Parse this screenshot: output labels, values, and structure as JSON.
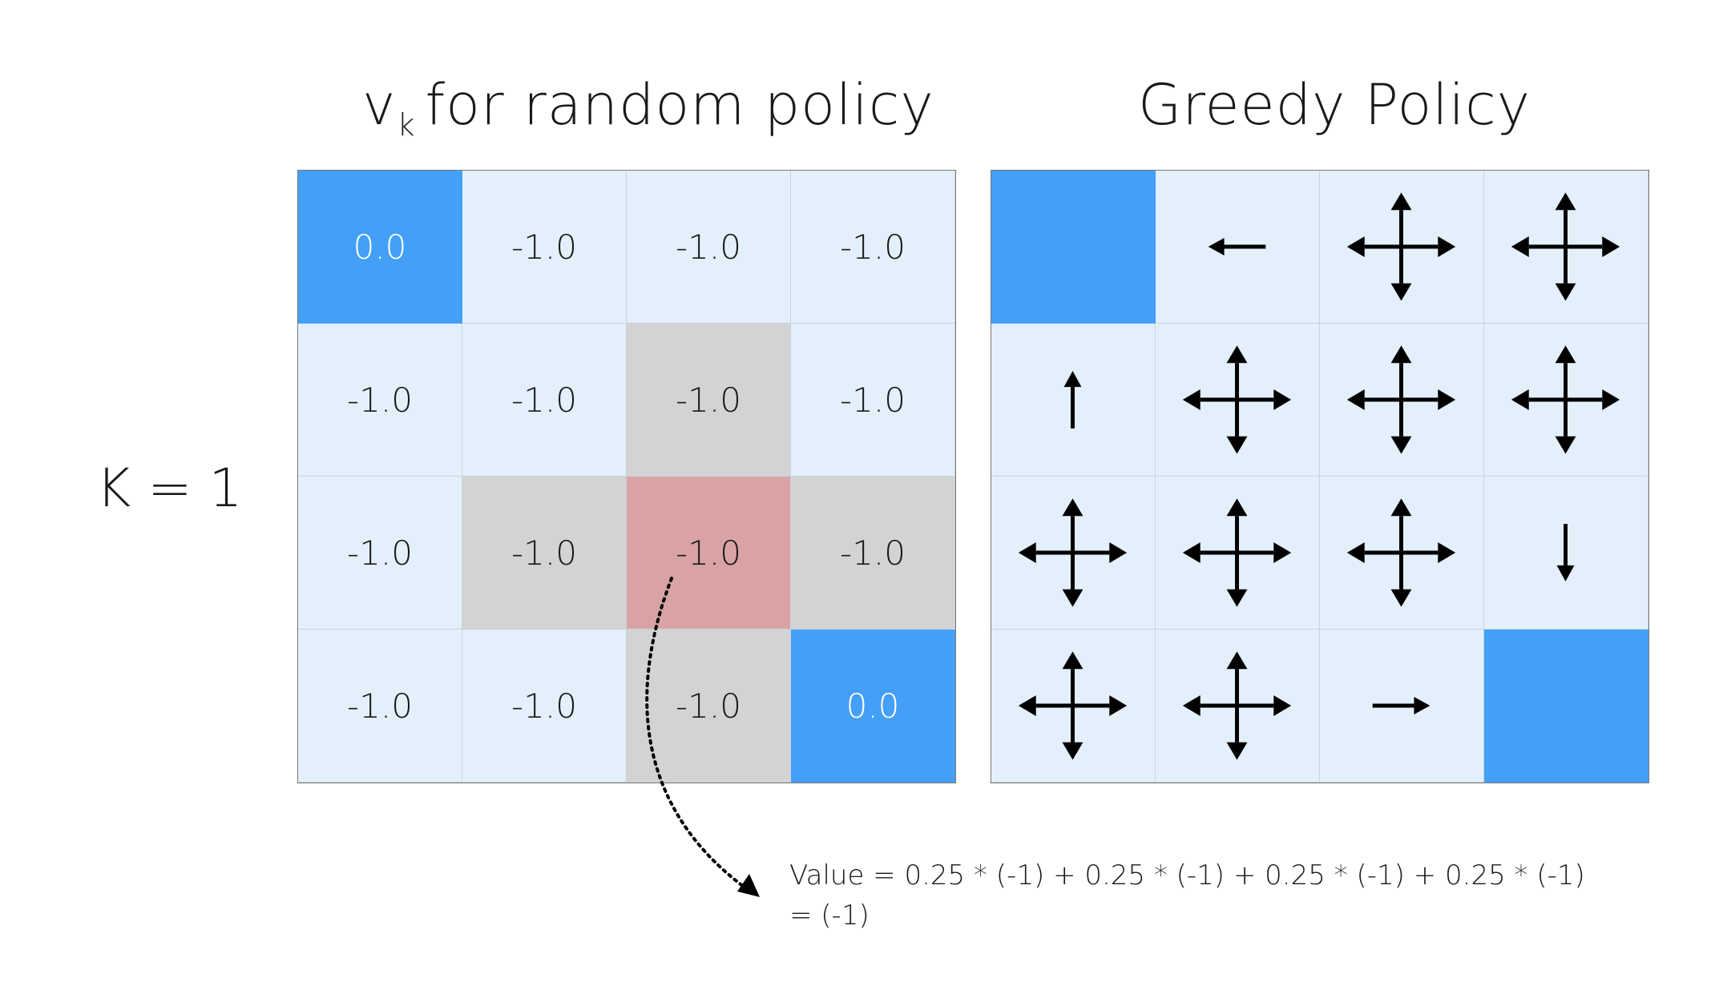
{
  "titles": {
    "left_main": "v",
    "left_sub": "k",
    "left_rest": "for random policy",
    "right": "Greedy Policy"
  },
  "k_label": "K = 1",
  "value_grid": [
    [
      "0.0",
      "-1.0",
      "-1.0",
      "-1.0"
    ],
    [
      "-1.0",
      "-1.0",
      "-1.0",
      "-1.0"
    ],
    [
      "-1.0",
      "-1.0",
      "-1.0",
      "-1.0"
    ],
    [
      "-1.0",
      "-1.0",
      "-1.0",
      "0.0"
    ]
  ],
  "cell_states": [
    [
      "terminal",
      "normal",
      "normal",
      "normal"
    ],
    [
      "normal",
      "normal",
      "neighbor",
      "normal"
    ],
    [
      "normal",
      "neighbor",
      "focus",
      "neighbor"
    ],
    [
      "normal",
      "normal",
      "neighbor",
      "terminal"
    ]
  ],
  "policy_grid": [
    [
      "terminal",
      "left",
      "all",
      "all"
    ],
    [
      "up",
      "all",
      "all",
      "all"
    ],
    [
      "all",
      "all",
      "all",
      "down"
    ],
    [
      "all",
      "all",
      "right",
      "terminal"
    ]
  ],
  "formula": {
    "line1": "Value = 0.25 * (-1) + 0.25 * (-1) + 0.25 * (-1) + 0.25 * (-1)",
    "line2": "= (-1)"
  },
  "colors": {
    "terminal": "#449ff7",
    "cell": "#e3f0fb",
    "neighbor": "#d3d3d3",
    "focus": "#d9a3a6",
    "arrow": "#000000"
  }
}
